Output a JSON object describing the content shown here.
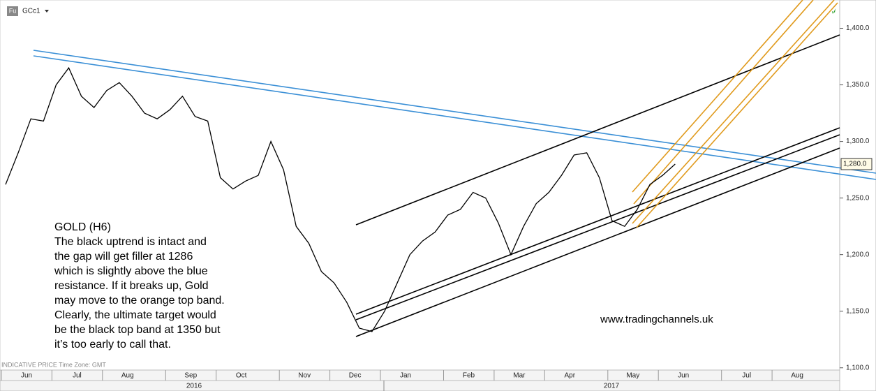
{
  "chart_data": {
    "type": "line",
    "symbol": "GCc1",
    "instrument_badge": "Fu",
    "footer": "INDICATIVE PRICE   Time Zone: GMT",
    "annotation": [
      "GOLD (H6)",
      "The black uptrend is intact and",
      "the gap will get filler at 1286",
      "which is slightly above the blue",
      "resistance. If it breaks up, Gold",
      "may move to the orange top band.",
      "Clearly, the ultimate target would",
      "be the black top band at 1350 but",
      "it’s too early to call that."
    ],
    "watermark": "www.tradingchannels.uk",
    "categories": [
      "Jun",
      null,
      null,
      null,
      "Jul",
      null,
      null,
      null,
      "Aug",
      null,
      null,
      null,
      null,
      "Sep",
      null,
      null,
      null,
      "Oct",
      null,
      null,
      null,
      null,
      "Nov",
      null,
      null,
      null,
      "Dec",
      null,
      null,
      null,
      "Jan",
      null,
      null,
      null,
      null,
      "Feb",
      null,
      null,
      null,
      "Mar",
      null,
      null,
      null,
      "Apr",
      null,
      null,
      null,
      null,
      "May",
      null,
      null,
      null,
      "Jun",
      null,
      null,
      null,
      null,
      "Jul",
      null,
      null,
      null,
      "Aug",
      null,
      null,
      null,
      null
    ],
    "year_labels": [
      "2016",
      "2017"
    ],
    "series": [
      {
        "name": "GCc1",
        "color": "#000000",
        "values": [
          1262,
          1290,
          1320,
          1318,
          1350,
          1365,
          1340,
          1330,
          1345,
          1352,
          1340,
          1325,
          1320,
          1328,
          1340,
          1322,
          1318,
          1268,
          1258,
          1265,
          1270,
          1300,
          1275,
          1225,
          1210,
          1185,
          1175,
          1158,
          1135,
          1132,
          1150,
          1175,
          1200,
          1212,
          1220,
          1235,
          1240,
          1255,
          1250,
          1228,
          1200,
          1225,
          1245,
          1255,
          1270,
          1288,
          1290,
          1268,
          1230,
          1225,
          1240,
          1262,
          1270,
          1280,
          null,
          null,
          null,
          null,
          null,
          null,
          null,
          null,
          null,
          null,
          null,
          null
        ]
      }
    ],
    "last_price": {
      "value": 1280,
      "label": "1,280.0"
    },
    "ylim": [
      1098,
      1425
    ],
    "yticks": [
      {
        "value": 1100,
        "label": "1,100.0"
      },
      {
        "value": 1150,
        "label": "1,150.0"
      },
      {
        "value": 1200,
        "label": "1,200.0"
      },
      {
        "value": 1250,
        "label": "1,250.0"
      },
      {
        "value": 1300,
        "label": "1,300.0"
      },
      {
        "value": 1350,
        "label": "1,350.0"
      },
      {
        "value": 1400,
        "label": "1,400.0"
      }
    ]
  }
}
